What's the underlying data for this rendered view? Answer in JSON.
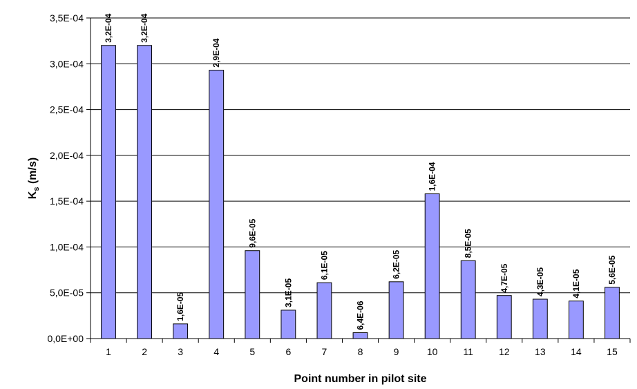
{
  "chart_data": {
    "type": "bar",
    "title": "",
    "xlabel": "Point number in pilot site",
    "ylabel_main": "K",
    "ylabel_sub": "s",
    "ylabel_unit": " (m/s)",
    "categories": [
      "1",
      "2",
      "3",
      "4",
      "5",
      "6",
      "7",
      "8",
      "9",
      "10",
      "11",
      "12",
      "13",
      "14",
      "15"
    ],
    "values": [
      0.00032,
      0.00032,
      1.6e-05,
      0.000293,
      9.6e-05,
      3.1e-05,
      6.1e-05,
      6.4e-06,
      6.2e-05,
      0.000158,
      8.5e-05,
      4.7e-05,
      4.3e-05,
      4.1e-05,
      5.6e-05
    ],
    "data_labels": [
      "3,2E-04",
      "3,2E-04",
      "1,6E-05",
      "2,9E-04",
      "9,6E-05",
      "3,1E-05",
      "6,1E-05",
      "6,4E-06",
      "6,2E-05",
      "1,6E-04",
      "8,5E-05",
      "4,7E-05",
      "4,3E-05",
      "4,1E-05",
      "5,6E-05"
    ],
    "y_ticks": [
      0,
      5e-05,
      0.0001,
      0.00015,
      0.0002,
      0.00025,
      0.0003,
      0.00035
    ],
    "y_tick_labels": [
      "0,0E+00",
      "5,0E-05",
      "1,0E-04",
      "1,5E-04",
      "2,0E-04",
      "2,5E-04",
      "3,0E-04",
      "3,5E-04"
    ],
    "ylim": [
      0,
      0.00035
    ],
    "grid": true,
    "legend": "none",
    "colors": {
      "bar_fill": "#9999ff",
      "bar_stroke": "#000000",
      "grid": "#000000"
    }
  }
}
